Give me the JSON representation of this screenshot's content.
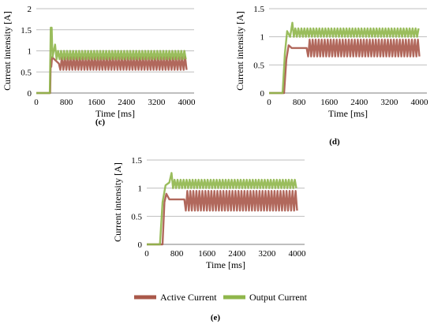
{
  "colors": {
    "active": "#a9584a",
    "output": "#8fb64b",
    "grid": "#bfbfbf",
    "axis": "#7f7f7f"
  },
  "legend": {
    "position": "bottom-center",
    "items": [
      {
        "label": "Active Current",
        "color": "#a9584a"
      },
      {
        "label": "Output Current",
        "color": "#8fb64b"
      }
    ]
  },
  "chart_data": [
    {
      "type": "line",
      "panel_label": "(c)",
      "xlabel": "Time [ms]",
      "ylabel": "Current intensity [A]",
      "xlim": [
        0,
        4200
      ],
      "ylim": [
        0,
        2
      ],
      "xticks": [
        0,
        800,
        1600,
        2400,
        3200,
        4000
      ],
      "yticks": [
        0,
        0.5,
        1,
        1.5,
        2
      ],
      "ytick_labels": [
        "0",
        "0.5",
        "1",
        "1.5",
        "2"
      ],
      "grid": "horizontal",
      "series": [
        {
          "name": "Active Current",
          "description": "rises from 0 at ~380 ms to ~0.85 A, then oscillates roughly between 0.55 and 0.85 A",
          "points": [
            [
              0,
              0
            ],
            [
              370,
              0
            ],
            [
              385,
              0.78
            ],
            [
              400,
              0.62
            ],
            [
              420,
              0.85
            ],
            [
              600,
              0.7
            ],
            [
              1000,
              0.7
            ],
            [
              2000,
              0.7
            ],
            [
              3000,
              0.7
            ],
            [
              4000,
              0.7
            ]
          ],
          "min": 0.55,
          "max": 0.85
        },
        {
          "name": "Output Current",
          "description": "spikes to ~1.55 A at ~400 ms, settles and oscillates roughly between 0.8 and 1.0 A",
          "points": [
            [
              0,
              0
            ],
            [
              360,
              0
            ],
            [
              385,
              1.55
            ],
            [
              410,
              1.55
            ],
            [
              430,
              0.85
            ],
            [
              500,
              1.15
            ],
            [
              600,
              0.92
            ],
            [
              1000,
              0.92
            ],
            [
              2000,
              0.92
            ],
            [
              3000,
              0.92
            ],
            [
              4000,
              0.92
            ]
          ],
          "min": 0.8,
          "max": 1.0
        }
      ]
    },
    {
      "type": "line",
      "panel_label": "(d)",
      "xlabel": "Time [ms]",
      "ylabel": "Current intensity [A]",
      "xlim": [
        0,
        4200
      ],
      "ylim": [
        0,
        1.5
      ],
      "xticks": [
        0,
        800,
        1600,
        2400,
        3200,
        4000
      ],
      "yticks": [
        0,
        0.5,
        1,
        1.5
      ],
      "ytick_labels": [
        "0",
        "0.5",
        "1",
        "1.5"
      ],
      "grid": "horizontal",
      "series": [
        {
          "name": "Active Current",
          "description": "rises from 0 at ~420 ms to ~0.9 A, then oscillates roughly between 0.65 and 0.95 A",
          "points": [
            [
              0,
              0
            ],
            [
              400,
              0
            ],
            [
              460,
              0.6
            ],
            [
              520,
              0.85
            ],
            [
              600,
              0.8
            ],
            [
              1000,
              0.8
            ],
            [
              2000,
              0.8
            ],
            [
              3000,
              0.8
            ],
            [
              4000,
              0.8
            ]
          ],
          "min": 0.65,
          "max": 0.95
        },
        {
          "name": "Output Current",
          "description": "rises from 0 at ~380 ms, spikes to ~1.25 A near 600 ms, then oscillates roughly between 1.0 and 1.15 A",
          "points": [
            [
              0,
              0
            ],
            [
              360,
              0
            ],
            [
              420,
              0.7
            ],
            [
              480,
              1.1
            ],
            [
              560,
              1.0
            ],
            [
              620,
              1.25
            ],
            [
              700,
              1.05
            ],
            [
              1000,
              1.08
            ],
            [
              2000,
              1.08
            ],
            [
              3000,
              1.08
            ],
            [
              4000,
              1.08
            ]
          ],
          "min": 1.0,
          "max": 1.15
        }
      ]
    },
    {
      "type": "line",
      "panel_label": "(e)",
      "xlabel": "Time [ms]",
      "ylabel": "Current intensity [A]",
      "xlim": [
        0,
        4200
      ],
      "ylim": [
        0,
        1.5
      ],
      "xticks": [
        0,
        800,
        1600,
        2400,
        3200,
        4000
      ],
      "yticks": [
        0,
        0.5,
        1,
        1.5
      ],
      "ytick_labels": [
        "0",
        "0.5",
        "1",
        "1.5"
      ],
      "grid": "horizontal",
      "series": [
        {
          "name": "Active Current",
          "description": "rises from 0 at ~420 ms to ~0.9 A, then oscillates roughly between 0.6 and 0.95 A",
          "points": [
            [
              0,
              0
            ],
            [
              420,
              0
            ],
            [
              470,
              0.75
            ],
            [
              520,
              0.9
            ],
            [
              600,
              0.8
            ],
            [
              1000,
              0.8
            ],
            [
              2000,
              0.8
            ],
            [
              3000,
              0.8
            ],
            [
              4000,
              0.8
            ]
          ],
          "min": 0.6,
          "max": 0.95
        },
        {
          "name": "Output Current",
          "description": "rises from 0 at ~360 ms, spikes to ~1.27 A near 650 ms, then oscillates roughly between 1.0 and 1.15 A",
          "points": [
            [
              0,
              0
            ],
            [
              350,
              0
            ],
            [
              420,
              0.75
            ],
            [
              500,
              1.05
            ],
            [
              600,
              1.1
            ],
            [
              660,
              1.27
            ],
            [
              720,
              1.05
            ],
            [
              1000,
              1.08
            ],
            [
              2000,
              1.08
            ],
            [
              3000,
              1.08
            ],
            [
              4000,
              1.08
            ]
          ],
          "min": 1.0,
          "max": 1.15
        }
      ]
    }
  ]
}
